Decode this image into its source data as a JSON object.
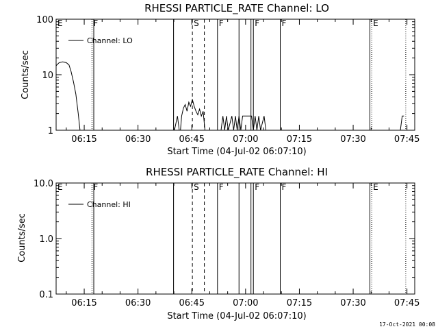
{
  "footer_date": "17-Oct-2021 00:08",
  "chart_data": [
    {
      "type": "line",
      "title": "RHESSI PARTICLE_RATE Channel: LO",
      "xlabel": "Start Time (04-Jul-02 06:07:10)",
      "ylabel": "Counts/sec",
      "yscale": "log",
      "ylim": [
        1,
        100
      ],
      "xlim": [
        "06:07:10",
        "07:47:10"
      ],
      "x_tick_labels": [
        "06:15",
        "06:30",
        "06:45",
        "07:00",
        "07:15",
        "07:30",
        "07:45"
      ],
      "y_tick_labels": [
        "1",
        "10",
        "100"
      ],
      "legend": {
        "position": "top-left",
        "entries": [
          "Channel: LO"
        ]
      },
      "series": [
        {
          "name": "Channel: LO",
          "points": [
            [
              "06:07:10",
              14.5
            ],
            [
              "06:08:00",
              16.5
            ],
            [
              "06:09:00",
              17
            ],
            [
              "06:10:00",
              16.5
            ],
            [
              "06:10:45",
              15
            ],
            [
              "06:11:20",
              11.5
            ],
            [
              "06:12:00",
              7.5
            ],
            [
              "06:12:40",
              4.5
            ],
            [
              "06:13:20",
              2
            ],
            [
              "06:13:50",
              1
            ],
            null,
            [
              "06:40:10",
              1
            ],
            [
              "06:41:00",
              1.8
            ],
            [
              "06:41:30",
              1
            ],
            null,
            [
              "06:41:50",
              1
            ],
            [
              "06:42:10",
              1.8
            ],
            [
              "06:42:40",
              2.5
            ],
            [
              "06:43:10",
              2.9
            ],
            [
              "06:43:40",
              2.2
            ],
            [
              "06:44:10",
              3.2
            ],
            [
              "06:44:40",
              2.7
            ],
            [
              "06:45:10",
              3.6
            ],
            [
              "06:45:40",
              2.7
            ],
            [
              "06:46:10",
              2.2
            ],
            [
              "06:46:40",
              1.9
            ],
            [
              "06:47:10",
              2.4
            ],
            [
              "06:47:40",
              1.8
            ],
            [
              "06:48:10",
              2.2
            ],
            [
              "06:48:40",
              1
            ],
            null,
            [
              "06:53:10",
              1
            ],
            [
              "06:53:40",
              1.8
            ],
            [
              "06:54:10",
              1
            ],
            [
              "06:54:40",
              1.8
            ],
            [
              "06:55:10",
              1
            ],
            [
              "06:56:10",
              1.8
            ],
            [
              "06:56:40",
              1
            ],
            [
              "06:57:10",
              1.8
            ],
            [
              "06:57:40",
              1
            ],
            [
              "06:58:10",
              1.8
            ],
            [
              "06:58:40",
              1
            ],
            [
              "06:59:10",
              1.8
            ],
            [
              "07:01:40",
              1.8
            ],
            [
              "07:02:10",
              1
            ],
            [
              "07:02:40",
              1.8
            ],
            [
              "07:03:10",
              1
            ],
            [
              "07:03:40",
              1.8
            ],
            [
              "07:04:10",
              1
            ],
            [
              "07:05:10",
              1.8
            ],
            [
              "07:05:40",
              1
            ],
            null,
            [
              "07:43:10",
              1
            ],
            [
              "07:43:40",
              1.8
            ],
            [
              "07:44:10",
              1.8
            ]
          ]
        }
      ],
      "markers": [
        {
          "time": "06:07:10",
          "label": "E",
          "style": "dotted"
        },
        {
          "time": "06:17:10",
          "label": "F",
          "style": "dotted"
        },
        {
          "time": "06:17:40",
          "label": "",
          "style": "solid"
        },
        {
          "time": "06:39:55",
          "label": "",
          "style": "solid"
        },
        {
          "time": "06:45:10",
          "label": "S",
          "style": "dashed"
        },
        {
          "time": "06:48:30",
          "label": "",
          "style": "dashed"
        },
        {
          "time": "06:52:10",
          "label": "F",
          "style": "solid"
        },
        {
          "time": "06:58:10",
          "label": "",
          "style": "solid"
        },
        {
          "time": "07:01:30",
          "label": "",
          "style": "solid"
        },
        {
          "time": "07:02:10",
          "label": "F",
          "style": "solid"
        },
        {
          "time": "07:09:40",
          "label": "F",
          "style": "solid"
        },
        {
          "time": "07:34:40",
          "label": "",
          "style": "solid"
        },
        {
          "time": "07:35:10",
          "label": "E",
          "style": "dotted"
        },
        {
          "time": "07:44:40",
          "label": "",
          "style": "dotted"
        }
      ]
    },
    {
      "type": "line",
      "title": "RHESSI PARTICLE_RATE Channel: HI",
      "xlabel": "Start Time (04-Jul-02 06:07:10)",
      "ylabel": "Counts/sec",
      "yscale": "log",
      "ylim": [
        0.1,
        10
      ],
      "xlim": [
        "06:07:10",
        "07:47:10"
      ],
      "x_tick_labels": [
        "06:15",
        "06:30",
        "06:45",
        "07:00",
        "07:15",
        "07:30",
        "07:45"
      ],
      "y_tick_labels": [
        "0.1",
        "1.0",
        "10.0"
      ],
      "legend": {
        "position": "top-left",
        "entries": [
          "Channel: HI"
        ]
      },
      "series": [
        {
          "name": "Channel: HI",
          "points": []
        }
      ],
      "markers": [
        {
          "time": "06:07:10",
          "label": "E",
          "style": "dotted"
        },
        {
          "time": "06:17:10",
          "label": "F",
          "style": "dotted"
        },
        {
          "time": "06:17:40",
          "label": "",
          "style": "solid"
        },
        {
          "time": "06:39:55",
          "label": "",
          "style": "solid"
        },
        {
          "time": "06:45:10",
          "label": "S",
          "style": "dashed"
        },
        {
          "time": "06:48:30",
          "label": "",
          "style": "dashed"
        },
        {
          "time": "06:52:10",
          "label": "F",
          "style": "solid"
        },
        {
          "time": "06:58:10",
          "label": "",
          "style": "solid"
        },
        {
          "time": "07:01:30",
          "label": "",
          "style": "solid"
        },
        {
          "time": "07:02:10",
          "label": "F",
          "style": "solid"
        },
        {
          "time": "07:09:40",
          "label": "F",
          "style": "solid"
        },
        {
          "time": "07:34:40",
          "label": "",
          "style": "solid"
        },
        {
          "time": "07:35:10",
          "label": "E",
          "style": "dotted"
        },
        {
          "time": "07:44:40",
          "label": "",
          "style": "dotted"
        }
      ]
    }
  ]
}
